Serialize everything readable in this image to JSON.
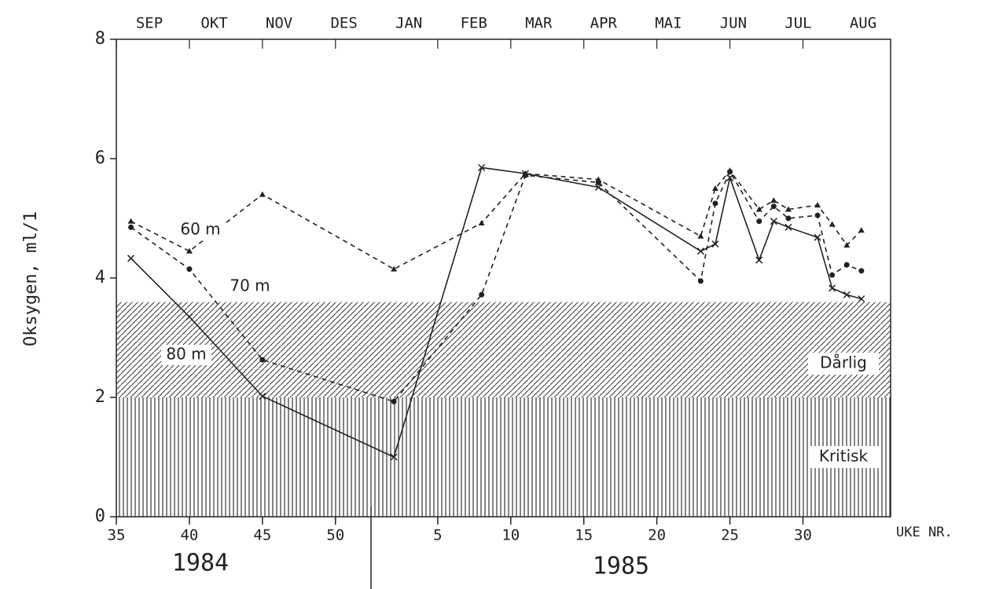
{
  "chart_data": {
    "type": "line",
    "months": [
      "SEP",
      "OKT",
      "NOV",
      "DES",
      "JAN",
      "FEB",
      "MAR",
      "APR",
      "MAI",
      "JUN",
      "JUL",
      "AUG"
    ],
    "y_label": "Oksygen, ml/1",
    "x_label": "UKE NR.",
    "years": [
      "1984",
      "1985"
    ],
    "x": [
      36,
      40,
      45,
      54,
      60,
      63,
      68,
      75,
      76,
      77,
      79,
      80,
      81,
      83,
      84,
      85,
      86
    ],
    "series": [
      {
        "name": "60 m",
        "color": "#222",
        "marker": "triangle",
        "dashed": true,
        "values": [
          4.95,
          4.45,
          5.4,
          4.15,
          4.92,
          5.75,
          5.65,
          4.7,
          5.5,
          5.8,
          5.15,
          5.3,
          5.15,
          5.22,
          4.9,
          4.55,
          4.8
        ]
      },
      {
        "name": "70 m",
        "color": "#222",
        "marker": "circle",
        "dashed": true,
        "values": [
          4.85,
          4.15,
          2.63,
          1.93,
          3.72,
          5.72,
          5.6,
          3.95,
          5.25,
          5.78,
          4.95,
          5.2,
          5.0,
          5.05,
          4.05,
          4.22,
          4.12
        ]
      },
      {
        "name": "80 m",
        "color": "#222",
        "marker": "x",
        "dashed": false,
        "values": [
          4.33,
          3.35,
          2.02,
          1.0,
          5.85,
          5.75,
          5.52,
          4.45,
          4.57,
          5.68,
          4.3,
          4.95,
          4.85,
          4.68,
          3.83,
          3.72,
          3.65
        ]
      }
    ],
    "bands": [
      {
        "label": "Dårlig",
        "from": 2,
        "to": 3.6,
        "pattern": "diagonal"
      },
      {
        "label": "Kritisk",
        "from": 0,
        "to": 2,
        "pattern": "vertical"
      }
    ],
    "xlim": [
      35,
      88
    ],
    "xticks": [
      35,
      40,
      45,
      50,
      {
        "value": 57,
        "label": "5"
      },
      {
        "value": 62,
        "label": "10"
      },
      {
        "value": 67,
        "label": "15"
      },
      {
        "value": 72,
        "label": "20"
      },
      {
        "value": 77,
        "label": "25"
      },
      {
        "value": 82,
        "label": "30"
      }
    ],
    "ylim": [
      0,
      8
    ],
    "yticks": [
      0,
      2,
      4,
      6,
      8
    ]
  }
}
